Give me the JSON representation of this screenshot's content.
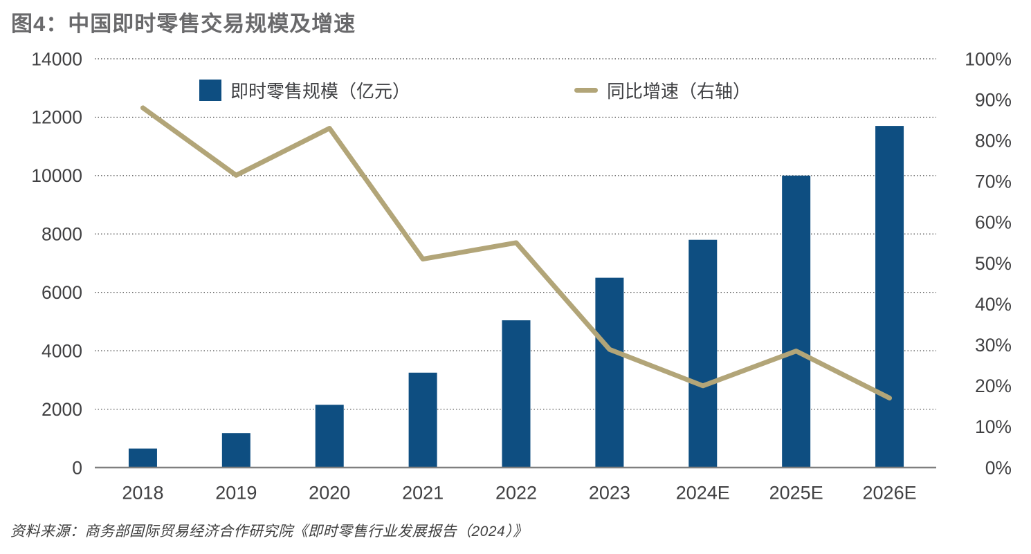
{
  "title": "图4：中国即时零售交易规模及增速",
  "source": "资料来源：商务部国际贸易经济合作研究院《即时零售行业发展报告（2024）》",
  "legend": {
    "bars_label": "即时零售规模（亿元）",
    "line_label": "同比增速（右轴）"
  },
  "colors": {
    "bar": "#0e4e81",
    "line": "#b2a578",
    "title_text": "#69696b",
    "axis_text": "#404042",
    "axis_line": "#7f7f7f",
    "gridline": "#3f3f3f"
  },
  "chart_data": {
    "type": "bar",
    "subtype": "bar+line combo, dual axis",
    "title": "图4：中国即时零售交易规模及增速",
    "categories": [
      "2018",
      "2019",
      "2020",
      "2021",
      "2022",
      "2023",
      "2024E",
      "2025E",
      "2026E"
    ],
    "series": [
      {
        "name": "即时零售规模（亿元）",
        "type": "bar",
        "axis": "left",
        "values": [
          650,
          1180,
          2150,
          3250,
          5043,
          6500,
          7800,
          10000,
          11700
        ]
      },
      {
        "name": "同比增速（右轴）",
        "type": "line",
        "axis": "right",
        "unit": "%",
        "values": [
          88,
          71.5,
          83,
          51,
          55,
          28.9,
          20,
          28.5,
          17
        ]
      }
    ],
    "left_axis": {
      "min": 0,
      "max": 14000,
      "step": 2000,
      "tick_labels": [
        "0",
        "2000",
        "4000",
        "6000",
        "8000",
        "10000",
        "12000",
        "14000"
      ]
    },
    "right_axis": {
      "min": 0,
      "max": 100,
      "step": 10,
      "tick_labels": [
        "0%",
        "10%",
        "20%",
        "30%",
        "40%",
        "50%",
        "60%",
        "70%",
        "80%",
        "90%",
        "100%"
      ]
    },
    "grid": "horizontal dotted lines at every left-axis step",
    "legend_position": "top inside plot"
  }
}
